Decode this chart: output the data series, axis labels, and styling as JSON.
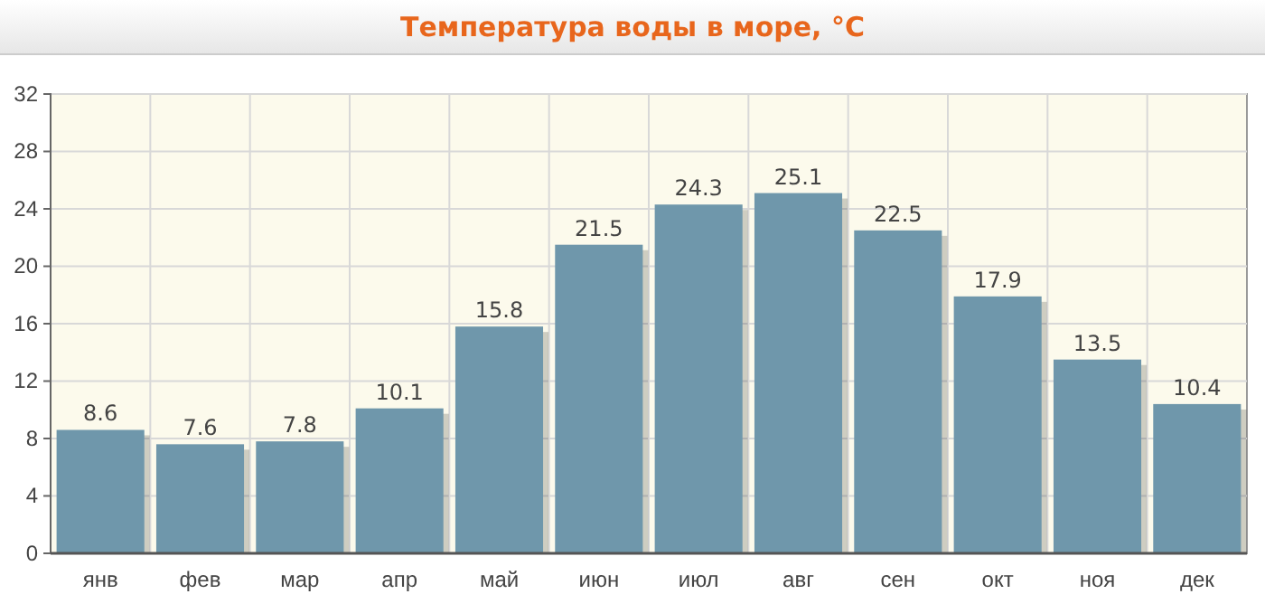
{
  "chart_data": {
    "type": "bar",
    "title": "Температура воды в море, °C",
    "categories": [
      "янв",
      "фев",
      "мар",
      "апр",
      "май",
      "июн",
      "июл",
      "авг",
      "сен",
      "окт",
      "ноя",
      "дек"
    ],
    "values": [
      8.6,
      7.6,
      7.8,
      10.1,
      15.8,
      21.5,
      24.3,
      25.1,
      22.5,
      17.9,
      13.5,
      10.4
    ],
    "color": "#6f97ab",
    "ylim": [
      0,
      32
    ],
    "yticks": [
      0,
      4,
      8,
      12,
      16,
      20,
      24,
      28,
      32
    ],
    "grid": true,
    "data_labels": true
  }
}
